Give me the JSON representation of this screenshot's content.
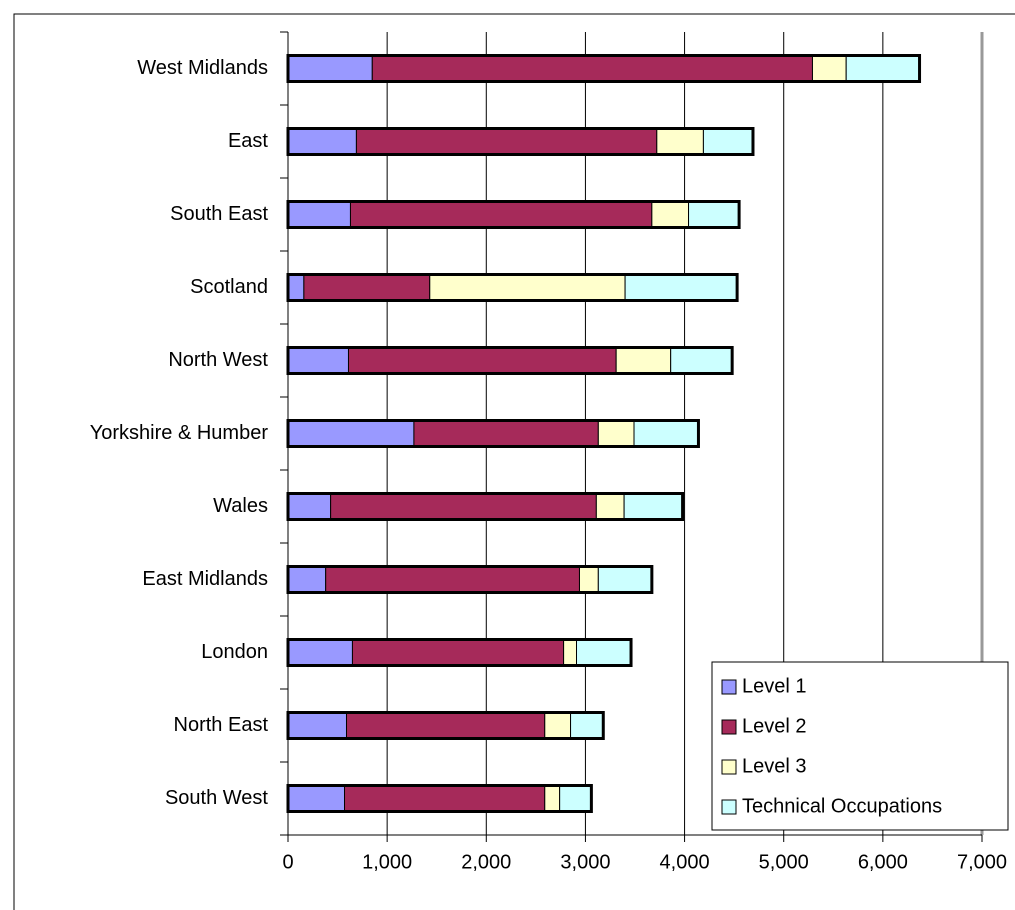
{
  "chart_data": {
    "type": "stacked-barh",
    "categories": [
      "West Midlands",
      "East",
      "South East",
      "Scotland",
      "North West",
      "Yorkshire & Humber",
      "Wales",
      "East Midlands",
      "London",
      "North East",
      "South West"
    ],
    "series": [
      {
        "name": "Level 1",
        "color": "#9999ff",
        "values": [
          850,
          690,
          630,
          160,
          610,
          1270,
          430,
          380,
          650,
          590,
          570
        ]
      },
      {
        "name": "Level 2",
        "color": "#a62a5a",
        "values": [
          4440,
          3030,
          3040,
          1270,
          2700,
          1860,
          2680,
          2560,
          2130,
          2000,
          2020
        ]
      },
      {
        "name": "Level 3",
        "color": "#ffffcc",
        "values": [
          340,
          470,
          370,
          1970,
          550,
          360,
          280,
          190,
          130,
          260,
          150
        ]
      },
      {
        "name": "Technical Occupations",
        "color": "#ccffff",
        "values": [
          740,
          500,
          510,
          1130,
          620,
          650,
          590,
          540,
          550,
          330,
          320
        ]
      }
    ],
    "xlim": [
      0,
      7000
    ],
    "xticks": [
      0,
      {
        "value": 1000,
        "label": "1,000"
      },
      {
        "value": 2000,
        "label": "2,000"
      },
      {
        "value": 3000,
        "label": "3,000"
      },
      {
        "value": 4000,
        "label": "4,000"
      },
      {
        "value": 5000,
        "label": "5,000"
      },
      {
        "value": 6000,
        "label": "6,000"
      },
      {
        "value": 7000,
        "label": "7,000"
      }
    ],
    "grid": true,
    "legend": "lower right"
  }
}
